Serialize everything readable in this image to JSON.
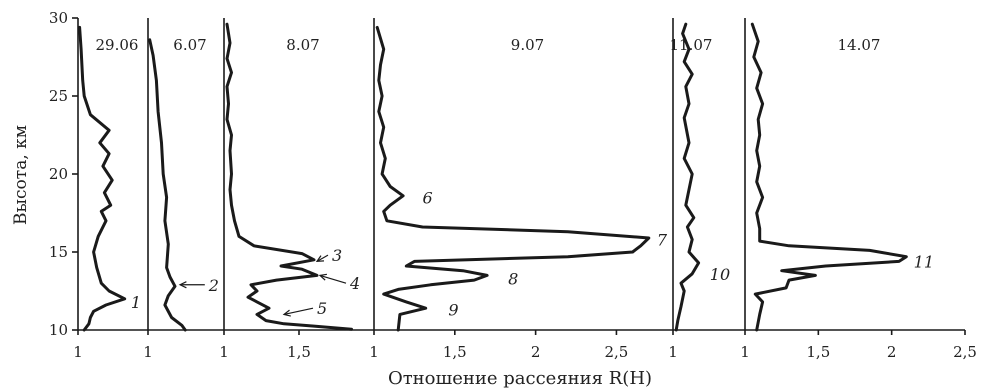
{
  "chart_data": {
    "type": "line",
    "ylabel": "Высота, км",
    "xlabel": "Отношение рассеяния R(H)",
    "ylim": [
      10,
      30
    ],
    "y_ticks": [
      "10",
      "15",
      "20",
      "25",
      "30"
    ],
    "panels": [
      {
        "name": "29.06",
        "xlim": [
          1,
          1.45
        ],
        "x_ticks": [
          {
            "v": 1,
            "t": "1"
          }
        ],
        "points": [
          [
            1.04,
            10
          ],
          [
            1.07,
            10.4
          ],
          [
            1.08,
            10.8
          ],
          [
            1.1,
            11.2
          ],
          [
            1.18,
            11.6
          ],
          [
            1.3,
            12
          ],
          [
            1.2,
            12.5
          ],
          [
            1.15,
            13
          ],
          [
            1.12,
            14
          ],
          [
            1.1,
            15
          ],
          [
            1.13,
            16
          ],
          [
            1.18,
            17
          ],
          [
            1.15,
            17.6
          ],
          [
            1.21,
            18
          ],
          [
            1.17,
            18.8
          ],
          [
            1.22,
            19.6
          ],
          [
            1.16,
            20.5
          ],
          [
            1.2,
            21.3
          ],
          [
            1.14,
            22
          ],
          [
            1.2,
            22.8
          ],
          [
            1.08,
            23.8
          ],
          [
            1.04,
            25
          ],
          [
            1.03,
            26
          ],
          [
            1.02,
            28
          ],
          [
            1.01,
            29.4
          ]
        ],
        "annotations": [
          {
            "text": "1",
            "y": 11.8,
            "x": 1.34
          }
        ]
      },
      {
        "name": "6.07",
        "xlim": [
          1,
          1.45
        ],
        "x_ticks": [
          {
            "v": 1,
            "t": "1"
          }
        ],
        "points": [
          [
            1.22,
            10
          ],
          [
            1.2,
            10.3
          ],
          [
            1.14,
            10.8
          ],
          [
            1.1,
            11.6
          ],
          [
            1.12,
            12.2
          ],
          [
            1.16,
            12.8
          ],
          [
            1.13,
            13.4
          ],
          [
            1.11,
            14
          ],
          [
            1.12,
            15.5
          ],
          [
            1.1,
            17
          ],
          [
            1.11,
            18.5
          ],
          [
            1.09,
            20
          ],
          [
            1.08,
            22
          ],
          [
            1.06,
            24
          ],
          [
            1.05,
            26
          ],
          [
            1.03,
            27.6
          ],
          [
            1.01,
            28.6
          ]
        ],
        "annotations": [
          {
            "text": "2",
            "y": 12.9,
            "x": 1.36,
            "arrow_to": [
              1.19,
              12.9
            ]
          }
        ]
      },
      {
        "name": "8.07",
        "xlim": [
          1,
          2.0
        ],
        "x_ticks": [
          {
            "v": 1,
            "t": "1"
          },
          {
            "v": 1.5,
            "t": "1,5"
          }
        ],
        "points": [
          [
            1.85,
            10.05
          ],
          [
            1.6,
            10.25
          ],
          [
            1.4,
            10.4
          ],
          [
            1.28,
            10.6
          ],
          [
            1.22,
            11.0
          ],
          [
            1.3,
            11.4
          ],
          [
            1.22,
            11.8
          ],
          [
            1.16,
            12.1
          ],
          [
            1.22,
            12.5
          ],
          [
            1.18,
            12.9
          ],
          [
            1.35,
            13.2
          ],
          [
            1.62,
            13.5
          ],
          [
            1.52,
            13.9
          ],
          [
            1.38,
            14.1
          ],
          [
            1.6,
            14.5
          ],
          [
            1.52,
            14.9
          ],
          [
            1.2,
            15.4
          ],
          [
            1.1,
            16.0
          ],
          [
            1.07,
            17
          ],
          [
            1.05,
            18
          ],
          [
            1.04,
            19
          ],
          [
            1.05,
            20
          ],
          [
            1.04,
            21.5
          ],
          [
            1.05,
            22.5
          ],
          [
            1.02,
            23.5
          ],
          [
            1.03,
            24.5
          ],
          [
            1.02,
            25.6
          ],
          [
            1.05,
            26.5
          ],
          [
            1.02,
            27.4
          ],
          [
            1.04,
            28.4
          ],
          [
            1.02,
            29.6
          ]
        ],
        "annotations": [
          {
            "text": "3",
            "y": 14.8,
            "x": 1.72,
            "arrow_to": [
              1.62,
              14.4
            ]
          },
          {
            "text": "4",
            "y": 13.0,
            "x": 1.84,
            "arrow_to": [
              1.64,
              13.5
            ]
          },
          {
            "text": "5",
            "y": 11.4,
            "x": 1.62,
            "arrow_to": [
              1.4,
              11.0
            ]
          }
        ]
      },
      {
        "name": "9.07",
        "xlim": [
          1,
          2.85
        ],
        "x_ticks": [
          {
            "v": 1,
            "t": "1"
          },
          {
            "v": 1.5,
            "t": "1,5"
          },
          {
            "v": 2,
            "t": "2"
          },
          {
            "v": 2.5,
            "t": "2,5"
          }
        ],
        "points": [
          [
            1.15,
            10
          ],
          [
            1.16,
            11
          ],
          [
            1.32,
            11.4
          ],
          [
            1.2,
            11.8
          ],
          [
            1.06,
            12.3
          ],
          [
            1.15,
            12.6
          ],
          [
            1.35,
            12.9
          ],
          [
            1.62,
            13.2
          ],
          [
            1.7,
            13.5
          ],
          [
            1.55,
            13.8
          ],
          [
            1.2,
            14.1
          ],
          [
            1.25,
            14.4
          ],
          [
            2.2,
            14.7
          ],
          [
            2.6,
            15.0
          ],
          [
            2.65,
            15.4
          ],
          [
            2.7,
            15.9
          ],
          [
            2.2,
            16.3
          ],
          [
            1.3,
            16.6
          ],
          [
            1.08,
            17.0
          ],
          [
            1.06,
            17.6
          ],
          [
            1.1,
            18
          ],
          [
            1.18,
            18.6
          ],
          [
            1.1,
            19.2
          ],
          [
            1.05,
            20
          ],
          [
            1.07,
            21
          ],
          [
            1.04,
            22
          ],
          [
            1.06,
            23
          ],
          [
            1.03,
            24
          ],
          [
            1.05,
            25
          ],
          [
            1.03,
            26
          ],
          [
            1.04,
            27
          ],
          [
            1.06,
            28
          ],
          [
            1.02,
            29.4
          ]
        ],
        "annotations": [
          {
            "text": "6",
            "y": 18.5,
            "x": 1.3
          },
          {
            "text": "7",
            "y": 15.8,
            "x": 2.75
          },
          {
            "text": "8",
            "y": 13.3,
            "x": 1.83
          },
          {
            "text": "9",
            "y": 11.3,
            "x": 1.46
          }
        ]
      },
      {
        "name": "11.07",
        "xlim": [
          1,
          1.45
        ],
        "x_ticks": [
          {
            "v": 1,
            "t": "1"
          }
        ],
        "points": [
          [
            1.02,
            10
          ],
          [
            1.03,
            10.6
          ],
          [
            1.05,
            11.5
          ],
          [
            1.07,
            12.5
          ],
          [
            1.05,
            13
          ],
          [
            1.12,
            13.6
          ],
          [
            1.16,
            14.3
          ],
          [
            1.1,
            15
          ],
          [
            1.12,
            15.8
          ],
          [
            1.09,
            16.6
          ],
          [
            1.13,
            17.2
          ],
          [
            1.08,
            18
          ],
          [
            1.1,
            19
          ],
          [
            1.12,
            20
          ],
          [
            1.07,
            21
          ],
          [
            1.1,
            22
          ],
          [
            1.07,
            23.6
          ],
          [
            1.1,
            24.5
          ],
          [
            1.08,
            25.6
          ],
          [
            1.12,
            26.4
          ],
          [
            1.07,
            27.2
          ],
          [
            1.1,
            28
          ],
          [
            1.06,
            29
          ],
          [
            1.08,
            29.6
          ]
        ],
        "annotations": [
          {
            "text": "10",
            "y": 13.6,
            "x": 1.23
          }
        ]
      },
      {
        "name": "14.07",
        "xlim": [
          1,
          2.5
        ],
        "x_ticks": [
          {
            "v": 1,
            "t": "1"
          },
          {
            "v": 1.5,
            "t": "1,5"
          },
          {
            "v": 2,
            "t": "2"
          },
          {
            "v": 2.5,
            "t": "2,5"
          }
        ],
        "points": [
          [
            1.08,
            10
          ],
          [
            1.1,
            11
          ],
          [
            1.12,
            11.8
          ],
          [
            1.07,
            12.3
          ],
          [
            1.28,
            12.7
          ],
          [
            1.3,
            13.2
          ],
          [
            1.48,
            13.5
          ],
          [
            1.25,
            13.8
          ],
          [
            1.55,
            14.1
          ],
          [
            2.05,
            14.4
          ],
          [
            2.1,
            14.7
          ],
          [
            1.85,
            15.1
          ],
          [
            1.3,
            15.4
          ],
          [
            1.1,
            15.7
          ],
          [
            1.1,
            16.5
          ],
          [
            1.08,
            17.5
          ],
          [
            1.12,
            18.5
          ],
          [
            1.08,
            19.5
          ],
          [
            1.1,
            20.5
          ],
          [
            1.08,
            21.5
          ],
          [
            1.1,
            22.5
          ],
          [
            1.09,
            23.5
          ],
          [
            1.12,
            24.5
          ],
          [
            1.08,
            25.5
          ],
          [
            1.11,
            26.5
          ],
          [
            1.06,
            27.5
          ],
          [
            1.09,
            28.5
          ],
          [
            1.05,
            29.6
          ]
        ],
        "annotations": [
          {
            "text": "11",
            "y": 14.4,
            "x": 2.15
          }
        ]
      }
    ]
  }
}
